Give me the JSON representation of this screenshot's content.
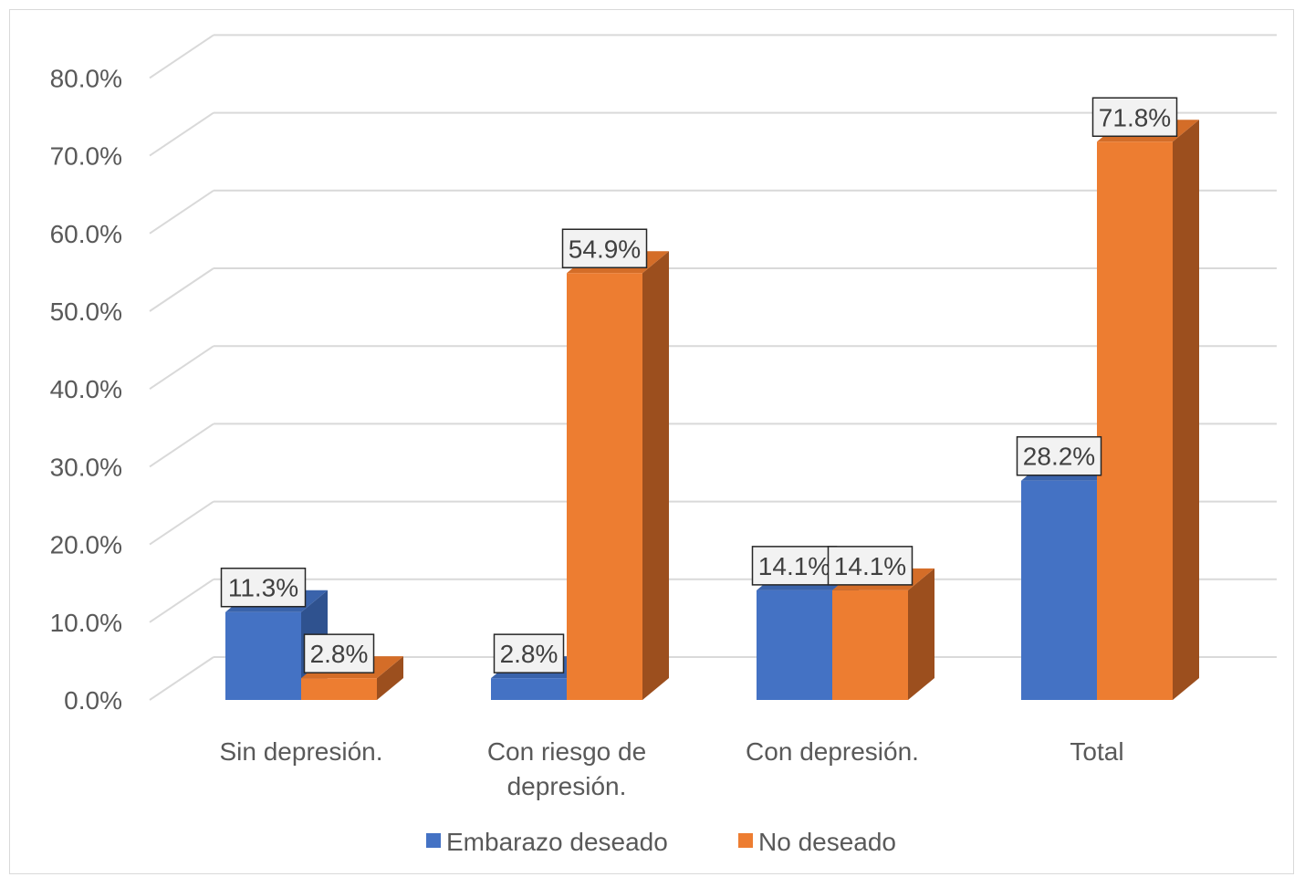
{
  "chart_data": {
    "type": "bar",
    "title": "",
    "xlabel": "",
    "ylabel": "",
    "categories": [
      [
        "Sin depresión."
      ],
      [
        "Con riesgo de",
        "depresión."
      ],
      [
        "Con depresión."
      ],
      [
        "Total"
      ]
    ],
    "series": [
      {
        "name": "Embarazo deseado",
        "values": [
          11.3,
          2.8,
          14.1,
          28.2
        ],
        "labels": [
          "11.3%",
          "2.8%",
          "14.1%",
          "28.2%"
        ]
      },
      {
        "name": "No deseado",
        "values": [
          2.8,
          54.9,
          14.1,
          71.8
        ],
        "labels": [
          "2.8%",
          "54.9%",
          "14.1%",
          "71.8%"
        ]
      }
    ],
    "yticks": [
      "0.0%",
      "10.0%",
      "20.0%",
      "30.0%",
      "40.0%",
      "50.0%",
      "60.0%",
      "70.0%",
      "80.0%"
    ],
    "ylim": [
      0,
      80
    ],
    "grid": true,
    "style": "3d-clustered-column",
    "legend_position": "bottom",
    "colors": {
      "series_1_front": "#4472c4",
      "series_1_top": "#3a63ab",
      "series_1_side": "#2f528f",
      "series_2_front": "#ed7d31",
      "series_2_top": "#d46d28",
      "series_2_side": "#9c4f1e",
      "grid": "#d9d9d9",
      "text": "#595959",
      "label_box_fill": "#f2f2f2",
      "label_box_border": "#262626"
    }
  }
}
